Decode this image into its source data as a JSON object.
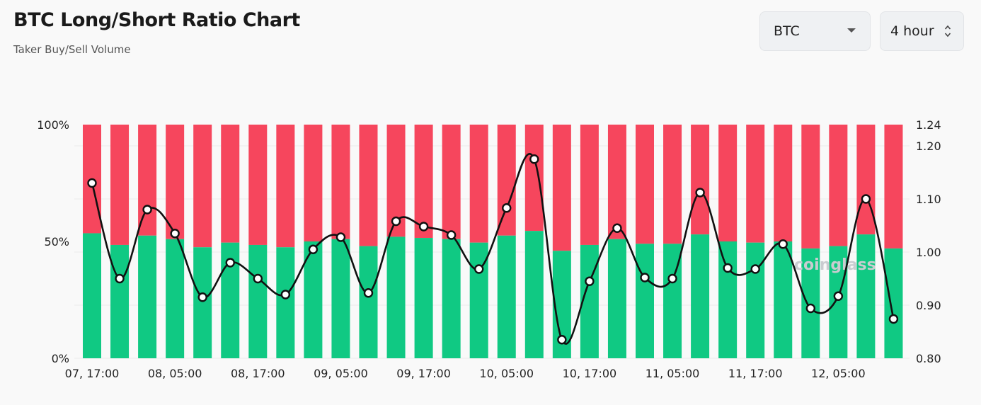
{
  "header": {
    "title": "BTC Long/Short Ratio Chart",
    "subtitle": "Taker Buy/Sell Volume"
  },
  "controls": {
    "symbol_value": "BTC",
    "interval_value": "4 hour"
  },
  "watermark": "coinglass",
  "chart_data": {
    "type": "bar",
    "title": "BTC Long/Short Ratio Chart",
    "x_tick_labels": [
      "07, 17:00",
      "08, 05:00",
      "08, 17:00",
      "09, 05:00",
      "09, 17:00",
      "10, 05:00",
      "10, 17:00",
      "11, 05:00",
      "11, 17:00",
      "12, 05:00"
    ],
    "left_axis": {
      "ticks": [
        "0%",
        "50%",
        "100%"
      ],
      "range": [
        0,
        100
      ]
    },
    "right_axis": {
      "ticks": [
        "0.80",
        "0.90",
        "1.00",
        "1.10",
        "1.20",
        "1.24"
      ],
      "range": [
        0.8,
        1.24
      ]
    },
    "colors": {
      "long": "#10c983",
      "short": "#f6465d",
      "line": "#111111"
    },
    "series": [
      {
        "kind": "stacked-bar-long",
        "values": [
          53.5,
          48.5,
          52.5,
          51,
          47.5,
          49.5,
          48.5,
          47.5,
          50,
          51,
          48,
          52,
          51.5,
          51,
          49.5,
          52.5,
          54.5,
          46,
          48.5,
          51,
          49,
          49,
          53,
          50,
          49.5,
          50,
          47,
          48,
          53,
          47
        ]
      },
      {
        "kind": "stacked-bar-short",
        "values": [
          46.5,
          51.5,
          47.5,
          49,
          52.5,
          50.5,
          51.5,
          52.5,
          50,
          49,
          52,
          48,
          48.5,
          49,
          50.5,
          47.5,
          45.5,
          54,
          51.5,
          49,
          51,
          51,
          47,
          50,
          50.5,
          50,
          53,
          52,
          47,
          53
        ]
      },
      {
        "kind": "ratio-line",
        "values": [
          1.13,
          0.95,
          1.08,
          1.035,
          0.915,
          0.98,
          0.95,
          0.92,
          1.005,
          1.028,
          0.923,
          1.058,
          1.048,
          1.032,
          0.968,
          1.083,
          1.175,
          0.835,
          0.945,
          1.045,
          0.952,
          0.95,
          1.112,
          0.97,
          0.968,
          1.015,
          0.894,
          0.917,
          1.1,
          0.874
        ]
      }
    ],
    "grid": true
  }
}
